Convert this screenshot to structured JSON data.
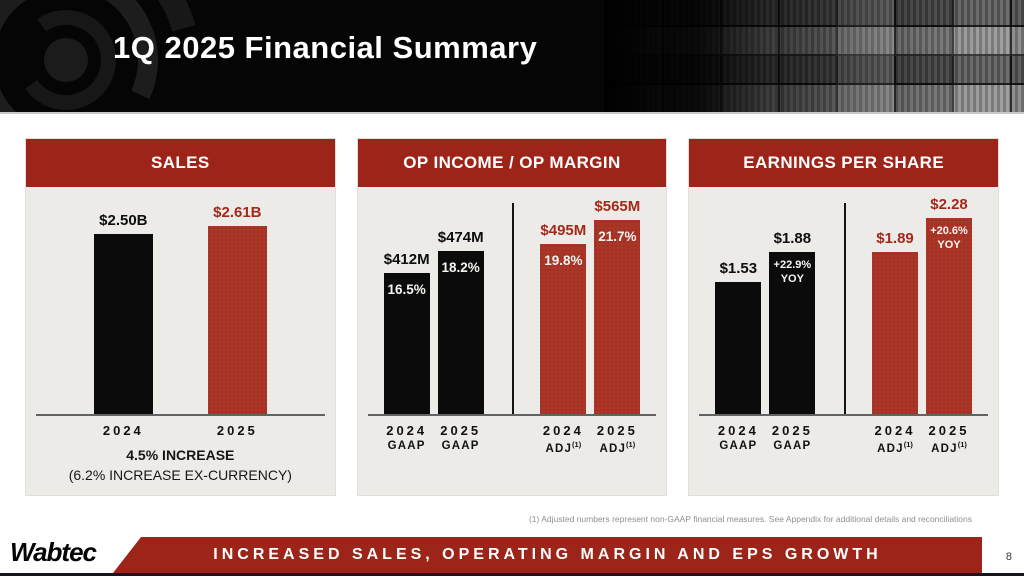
{
  "slide": {
    "title": "1Q 2025 Financial Summary",
    "footnote": "(1)  Adjusted numbers represent non-GAAP financial measures.  See Appendix for additional details and reconciliations",
    "banner_text": "INCREASED SALES, OPERATING MARGIN AND EPS GROWTH",
    "logo_text": "Wabtec",
    "page_number": "8"
  },
  "colors": {
    "brand_red": "#9c2418",
    "bar_red": "#ab3526",
    "bar_black": "#0b0b0b",
    "panel_bg": "#edebe7",
    "header_bg": "#050505"
  },
  "chart_data": [
    {
      "type": "bar",
      "title": "SALES",
      "unit": "$B",
      "categories": [
        "2024",
        "2025"
      ],
      "values": [
        2.5,
        2.61
      ],
      "bars": [
        {
          "value": 2.5,
          "value_label": "$2.50B",
          "color": "black",
          "category": "2024"
        },
        {
          "value": 2.61,
          "value_label": "$2.61B",
          "color": "red",
          "category": "2025"
        }
      ],
      "notes": [
        "4.5% INCREASE",
        "(6.2% INCREASE EX-CURRENCY)"
      ]
    },
    {
      "type": "bar",
      "title": "OP INCOME / OP MARGIN",
      "unit": "$M",
      "categories": [
        "2024 GAAP",
        "2025 GAAP",
        "2024 ADJ(1)",
        "2025 ADJ(1)"
      ],
      "values": [
        412,
        474,
        495,
        565
      ],
      "group_divider": true,
      "bars": [
        {
          "value": 412,
          "value_label": "$412M",
          "inner_label": "16.5%",
          "color": "black",
          "category": "2024",
          "category_sub": "GAAP"
        },
        {
          "value": 474,
          "value_label": "$474M",
          "inner_label": "18.2%",
          "color": "black",
          "category": "2025",
          "category_sub": "GAAP"
        },
        {
          "value": 495,
          "value_label": "$495M",
          "inner_label": "19.8%",
          "color": "red",
          "category": "2024",
          "category_sub": "ADJ",
          "category_sup": "(1)"
        },
        {
          "value": 565,
          "value_label": "$565M",
          "inner_label": "21.7%",
          "color": "red",
          "category": "2025",
          "category_sub": "ADJ",
          "category_sup": "(1)"
        }
      ]
    },
    {
      "type": "bar",
      "title": "EARNINGS PER SHARE",
      "unit": "$",
      "categories": [
        "2024 GAAP",
        "2025 GAAP",
        "2024 ADJ(1)",
        "2025 ADJ(1)"
      ],
      "values": [
        1.53,
        1.88,
        1.89,
        2.28
      ],
      "group_divider": true,
      "bars": [
        {
          "value": 1.53,
          "value_label": "$1.53",
          "color": "black",
          "category": "2024",
          "category_sub": "GAAP"
        },
        {
          "value": 1.88,
          "value_label": "$1.88",
          "inner_label": "+22.9%\nYOY",
          "color": "black",
          "category": "2025",
          "category_sub": "GAAP"
        },
        {
          "value": 1.89,
          "value_label": "$1.89",
          "color": "red",
          "category": "2024",
          "category_sub": "ADJ",
          "category_sup": "(1)"
        },
        {
          "value": 2.28,
          "value_label": "$2.28",
          "inner_label": "+20.6%\nYOY",
          "color": "red",
          "category": "2025",
          "category_sub": "ADJ",
          "category_sup": "(1)"
        }
      ]
    }
  ]
}
